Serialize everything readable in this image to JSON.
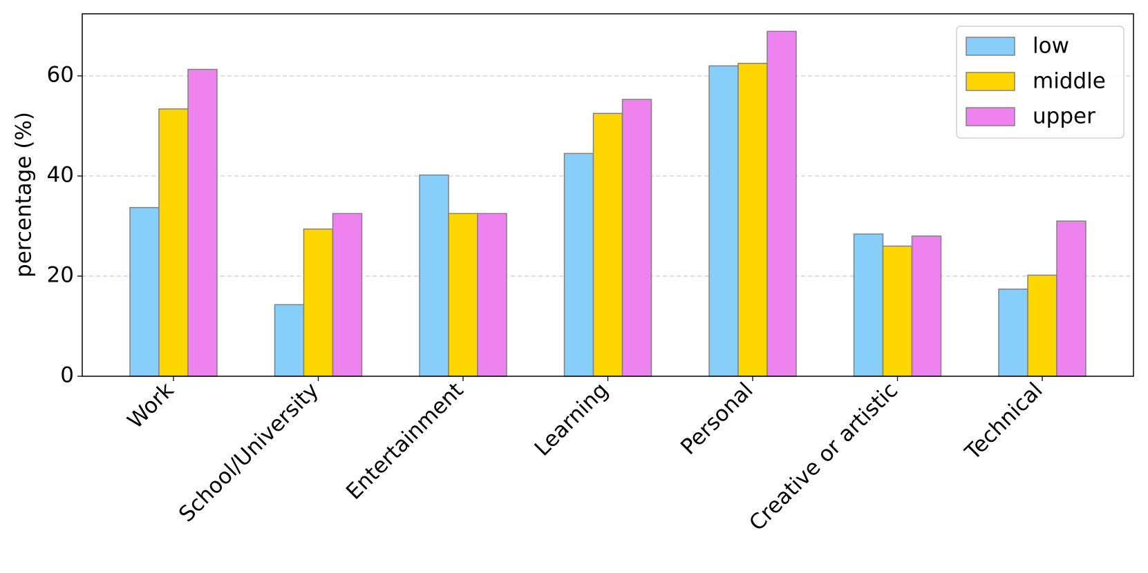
{
  "chart_data": {
    "type": "bar",
    "y_label": "percentage (%)",
    "categories": [
      "Work",
      "School/University",
      "Entertainment",
      "Learning",
      "Personal",
      "Creative or artistic",
      "Technical"
    ],
    "series": [
      {
        "name": "low",
        "color": "#87cefa",
        "values": [
          33.7,
          14.3,
          40.2,
          44.5,
          62.0,
          28.4,
          17.4
        ]
      },
      {
        "name": "middle",
        "color": "#ffd700",
        "values": [
          53.4,
          29.4,
          32.5,
          52.5,
          62.5,
          26.0,
          20.2
        ]
      },
      {
        "name": "upper",
        "color": "#ee82ee",
        "values": [
          61.3,
          32.5,
          32.5,
          55.3,
          68.9,
          28.0,
          31.0
        ]
      }
    ],
    "ylim": [
      0,
      72.4
    ],
    "yticks": [
      0,
      20,
      40,
      60
    ],
    "grid": true,
    "legend": "upper right"
  }
}
